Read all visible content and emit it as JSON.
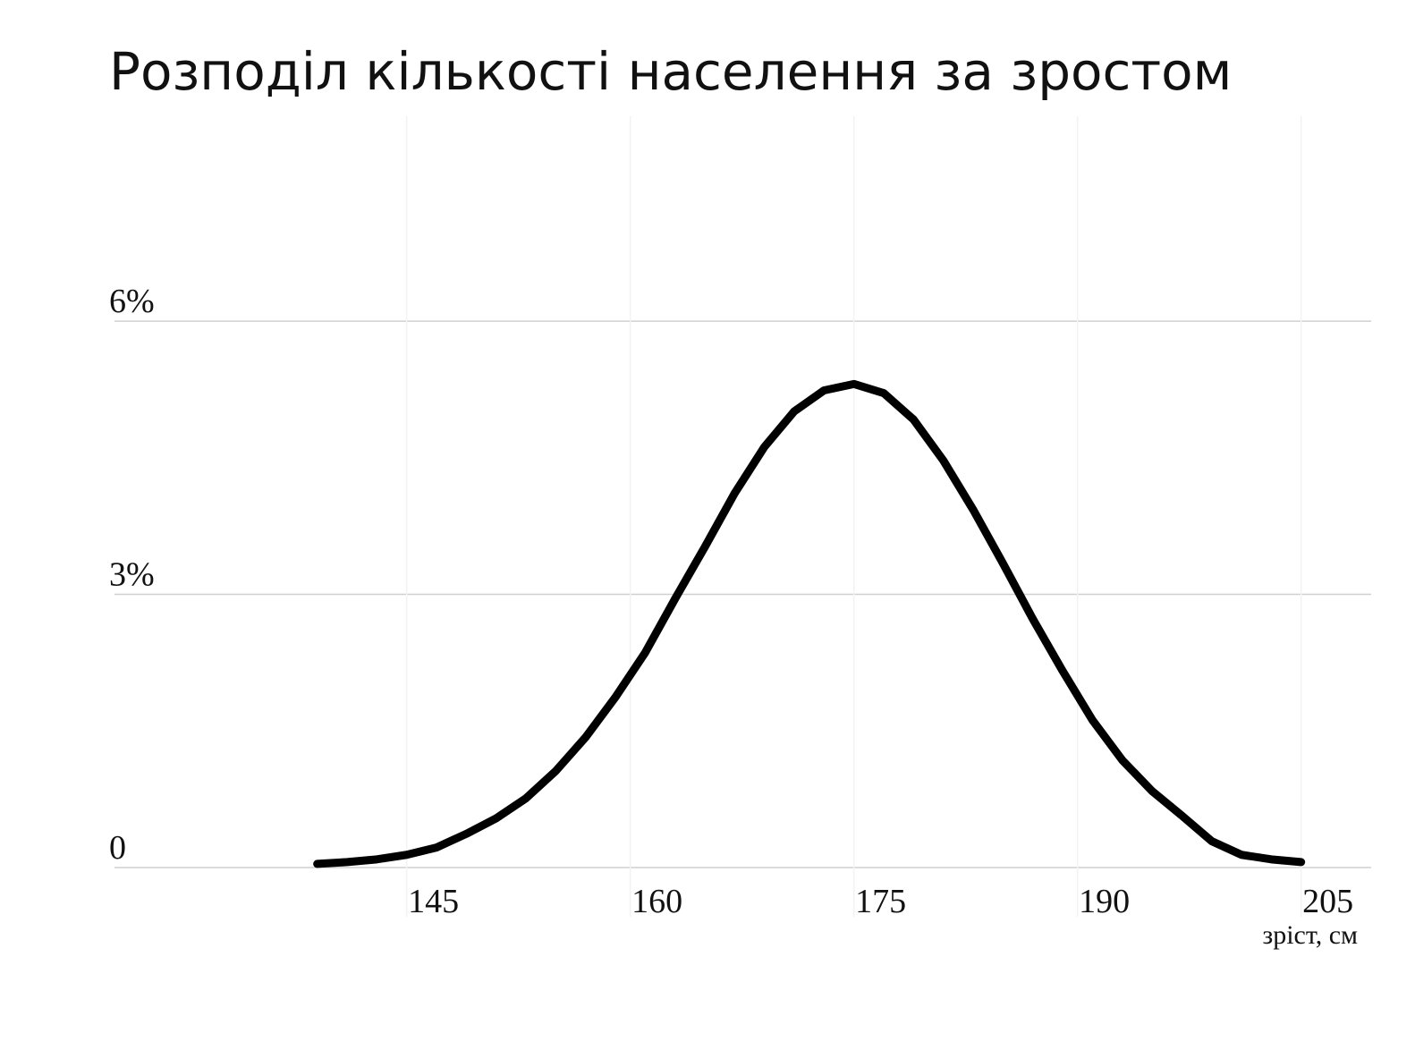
{
  "chart_data": {
    "type": "line",
    "title": "Розподіл кількості населення за зростом",
    "x_label": "зріст, см",
    "x": [
      139,
      141,
      143,
      145,
      147,
      149,
      151,
      153,
      155,
      157,
      159,
      161,
      163,
      165,
      167,
      169,
      171,
      173,
      175,
      177,
      179,
      181,
      183,
      185,
      187,
      189,
      191,
      193,
      195,
      197,
      199,
      201,
      203,
      205
    ],
    "values": [
      0.04,
      0.06,
      0.09,
      0.14,
      0.22,
      0.37,
      0.54,
      0.76,
      1.06,
      1.43,
      1.87,
      2.36,
      2.95,
      3.52,
      4.11,
      4.62,
      5.01,
      5.24,
      5.31,
      5.21,
      4.92,
      4.47,
      3.93,
      3.34,
      2.73,
      2.16,
      1.62,
      1.18,
      0.84,
      0.57,
      0.29,
      0.14,
      0.09,
      0.06
    ],
    "color": "#000000",
    "xlim": [
      125.4,
      209.7
    ],
    "xticks": [
      145,
      160,
      175,
      190,
      205
    ],
    "ylim": [
      0,
      8.25
    ],
    "yticks": [
      0,
      {
        "value": 3,
        "label": "3%"
      },
      {
        "value": 6,
        "label": "6%"
      }
    ],
    "grid": true
  }
}
